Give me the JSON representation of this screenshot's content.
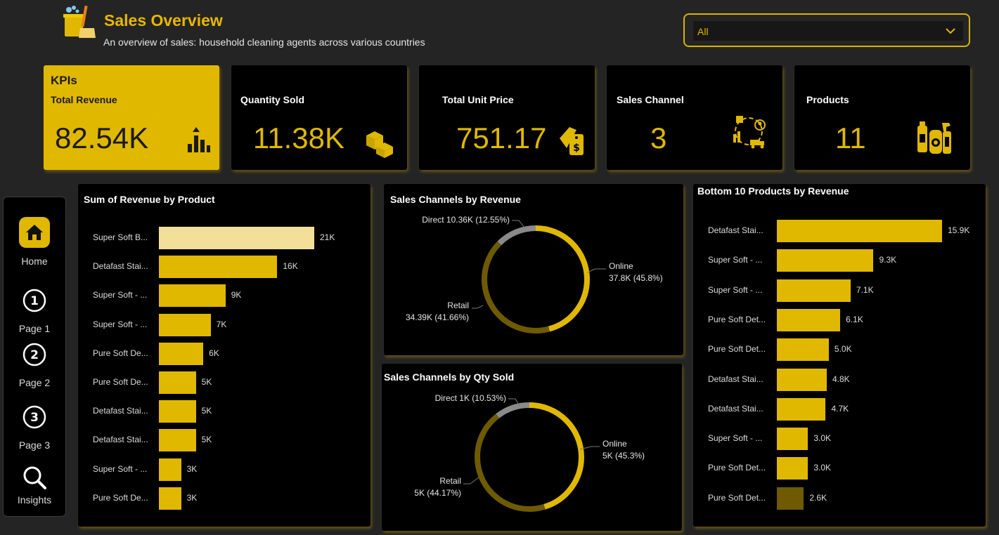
{
  "header": {
    "title": "Sales Overview",
    "subtitle": "An overview of sales: household cleaning agents across various countries",
    "logo_icon": "cleaning-bucket-icon"
  },
  "filter": {
    "value": "All",
    "icon": "chevron-down-icon"
  },
  "kpis": {
    "heading": "KPIs",
    "items": [
      {
        "title": "Total Revenue",
        "value": "82.54K",
        "icon": "bar-chart-up-icon"
      },
      {
        "title": "Quantity Sold",
        "value": "11.38K",
        "icon": "boxes-icon"
      },
      {
        "title": "Total Unit Price",
        "value": "751.17",
        "icon": "price-tag-dollar-icon"
      },
      {
        "title": "Sales Channel",
        "value": "3",
        "icon": "delivery-channels-icon"
      },
      {
        "title": "Products",
        "value": "11",
        "icon": "cleaning-bottles-icon"
      }
    ]
  },
  "nav": {
    "items": [
      {
        "label": "Home",
        "icon": "home-icon"
      },
      {
        "label": "Page 1",
        "icon": "number-1-icon"
      },
      {
        "label": "Page 2",
        "icon": "number-2-icon"
      },
      {
        "label": "Page 3",
        "icon": "number-3-icon"
      },
      {
        "label": "Insights",
        "icon": "search-icon"
      }
    ]
  },
  "colors": {
    "accent": "#e0b800",
    "dark_gold": "#6e5a00",
    "highlight": "#f2e09a",
    "grey": "#8a8a8a",
    "panel": "#000000",
    "background": "#242424"
  },
  "chart_data": [
    {
      "type": "bar",
      "orientation": "horizontal",
      "title": "Sum of Revenue by Product",
      "categories": [
        "Super Soft B...",
        "Detafast Stai...",
        "Super Soft - ...",
        "Super Soft - ...",
        "Pure Soft De...",
        "Pure Soft De...",
        "Detafast Stai...",
        "Detafast Stai...",
        "Super Soft - ...",
        "Pure Soft De..."
      ],
      "values": [
        21,
        16,
        9,
        7,
        6,
        5,
        5,
        5,
        3,
        3
      ],
      "value_labels": [
        "21K",
        "16K",
        "9K",
        "7K",
        "6K",
        "5K",
        "5K",
        "5K",
        "3K",
        "3K"
      ],
      "highlighted_index": 0
    },
    {
      "type": "pie",
      "donut": true,
      "title": "Sales Channels by Revenue",
      "slices": [
        {
          "name": "Online",
          "value": 37.8,
          "percent": 45.8,
          "label_lines": [
            "Online",
            "37.8K (45.8%)"
          ],
          "color": "#e0b800"
        },
        {
          "name": "Retail",
          "value": 34.39,
          "percent": 41.66,
          "label_lines": [
            "Retail",
            "34.39K (41.66%)"
          ],
          "color": "#6e5a00"
        },
        {
          "name": "Direct",
          "value": 10.36,
          "percent": 12.55,
          "label_lines": [
            "Direct 10.36K (12.55%)"
          ],
          "color": "#8a8a8a"
        }
      ]
    },
    {
      "type": "pie",
      "donut": true,
      "title": "Sales Channels by Qty Sold",
      "slices": [
        {
          "name": "Online",
          "value": 5,
          "percent": 45.3,
          "label_lines": [
            "Online",
            "5K (45.3%)"
          ],
          "color": "#e0b800"
        },
        {
          "name": "Retail",
          "value": 5,
          "percent": 44.17,
          "label_lines": [
            "Retail",
            "5K (44.17%)"
          ],
          "color": "#6e5a00"
        },
        {
          "name": "Direct",
          "value": 1,
          "percent": 10.53,
          "label_lines": [
            "Direct 1K (10.53%)"
          ],
          "color": "#8a8a8a"
        }
      ]
    },
    {
      "type": "bar",
      "orientation": "horizontal",
      "title": "Bottom 10 Products by Revenue",
      "categories": [
        "Detafast Stai...",
        "Super Soft - ...",
        "Super Soft - ...",
        "Pure Soft Det...",
        "Pure Soft Det...",
        "Detafast Stai...",
        "Detafast Stai...",
        "Super Soft - ...",
        "Pure Soft Det...",
        "Pure Soft Det..."
      ],
      "values": [
        15.9,
        9.3,
        7.1,
        6.1,
        5.0,
        4.8,
        4.7,
        3.0,
        3.0,
        2.6
      ],
      "value_labels": [
        "15.9K",
        "9.3K",
        "7.1K",
        "6.1K",
        "5.0K",
        "4.8K",
        "4.7K",
        "3.0K",
        "3.0K",
        "2.6K"
      ],
      "dark_index": 9
    }
  ]
}
